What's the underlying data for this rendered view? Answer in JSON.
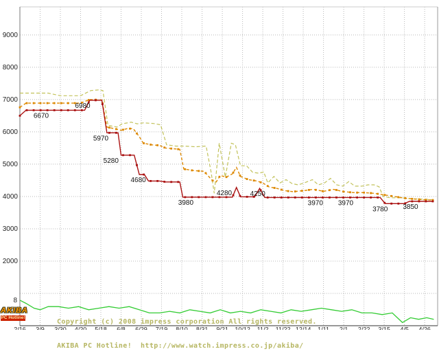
{
  "page": {
    "background": "#ffffff"
  },
  "watermark": {
    "line1": "Copyright (c) 2008 impress corporation All rights reserved.",
    "line2": "AKIBA PC Hotline!  http://www.watch.impress.co.jp/akiba/"
  },
  "logo": {
    "top": "AKIBA",
    "bottom": "PC Hotline!"
  },
  "chart_data": {
    "type": "line",
    "title": "",
    "xlabel": "",
    "ylabel": "",
    "grid": true,
    "x_tick_labels": [
      "2/16",
      "3/9",
      "3/30",
      "4/20",
      "5/18",
      "6/8",
      "6/29",
      "7/19",
      "8/10",
      "8/31",
      "9/21",
      "10/12",
      "11/2",
      "11/22",
      "12/14",
      "1/11",
      "2/1",
      "2/22",
      "3/15",
      "4/5",
      "4/26"
    ],
    "y_tick_labels": [
      9000,
      8000,
      7000,
      6000,
      5000,
      4000,
      3000,
      2000
    ],
    "y_gridlines": [
      1000,
      2000,
      3000,
      4000,
      5000,
      6000,
      7000,
      8000,
      9000
    ],
    "y_range": [
      0,
      9870
    ],
    "x_range": [
      0,
      20.64
    ],
    "count_range": [
      0,
      100
    ],
    "count_start_label": {
      "text": "8",
      "t": 0,
      "count": 8
    },
    "colors": {
      "lowest": "#aa1111",
      "average": "#dd8800",
      "highest": "#c2c25a",
      "shops": "#33cc33",
      "gridline": "#b8b8b8",
      "axis": "#555555",
      "annotation": "#111111"
    },
    "annotations": [
      {
        "text": "6670",
        "t": 1.05,
        "value": 6670
      },
      {
        "text": "6980",
        "t": 3.1,
        "value": 6980
      },
      {
        "text": "5970",
        "t": 4.0,
        "value": 5970
      },
      {
        "text": "5280",
        "t": 4.5,
        "value": 5280
      },
      {
        "text": "4680",
        "t": 5.85,
        "value": 4680
      },
      {
        "text": "3980",
        "t": 8.2,
        "value": 3980
      },
      {
        "text": "4280",
        "t": 10.1,
        "value": 4280
      },
      {
        "text": "4250",
        "t": 11.75,
        "value": 4250
      },
      {
        "text": "3970",
        "t": 14.6,
        "value": 3970
      },
      {
        "text": "3970",
        "t": 16.1,
        "value": 3970
      },
      {
        "text": "3780",
        "t": 17.8,
        "value": 3780
      },
      {
        "text": "3850",
        "t": 19.3,
        "value": 3850
      }
    ],
    "series": [
      {
        "name": "highest-price",
        "color": "#c2c25a",
        "dash": "5 3",
        "width": 1.2,
        "markers": false,
        "axis": "price",
        "points": [
          [
            0,
            7200
          ],
          [
            0.7,
            7200
          ],
          [
            1.4,
            7200
          ],
          [
            2,
            7120
          ],
          [
            3,
            7120
          ],
          [
            3.5,
            7280
          ],
          [
            3.9,
            7300
          ],
          [
            4.1,
            7280
          ],
          [
            4.35,
            6200
          ],
          [
            4.8,
            6150
          ],
          [
            5.05,
            6250
          ],
          [
            5.5,
            6300
          ],
          [
            5.8,
            6250
          ],
          [
            6.1,
            6280
          ],
          [
            6.6,
            6260
          ],
          [
            6.95,
            6220
          ],
          [
            7.25,
            5600
          ],
          [
            7.7,
            5560
          ],
          [
            8.1,
            5560
          ],
          [
            8.7,
            5540
          ],
          [
            9.2,
            5560
          ],
          [
            9.45,
            4750
          ],
          [
            9.6,
            4100
          ],
          [
            9.85,
            5650
          ],
          [
            10.15,
            4600
          ],
          [
            10.45,
            5650
          ],
          [
            10.65,
            5600
          ],
          [
            10.9,
            4950
          ],
          [
            11.2,
            4950
          ],
          [
            11.5,
            4750
          ],
          [
            11.8,
            4720
          ],
          [
            12.05,
            4760
          ],
          [
            12.25,
            4420
          ],
          [
            12.55,
            4620
          ],
          [
            12.85,
            4420
          ],
          [
            13.15,
            4520
          ],
          [
            13.45,
            4400
          ],
          [
            13.75,
            4360
          ],
          [
            14.05,
            4420
          ],
          [
            14.45,
            4520
          ],
          [
            14.75,
            4360
          ],
          [
            15.05,
            4420
          ],
          [
            15.35,
            4560
          ],
          [
            15.65,
            4360
          ],
          [
            15.95,
            4320
          ],
          [
            16.25,
            4460
          ],
          [
            16.55,
            4320
          ],
          [
            16.9,
            4320
          ],
          [
            17.2,
            4360
          ],
          [
            17.5,
            4360
          ],
          [
            17.75,
            4300
          ],
          [
            17.95,
            4000
          ],
          [
            18.3,
            3960
          ],
          [
            18.8,
            3960
          ],
          [
            19.3,
            3930
          ],
          [
            19.8,
            3920
          ],
          [
            20.45,
            3900
          ]
        ]
      },
      {
        "name": "average-price",
        "color": "#dd8800",
        "dash": "4 3",
        "width": 1.4,
        "markers": true,
        "axis": "price",
        "points": [
          [
            0,
            6760
          ],
          [
            0.3,
            6890
          ],
          [
            1,
            6890
          ],
          [
            2,
            6890
          ],
          [
            3,
            6890
          ],
          [
            3.45,
            7000
          ],
          [
            4.05,
            6990
          ],
          [
            4.3,
            6150
          ],
          [
            4.8,
            6080
          ],
          [
            5.0,
            6050
          ],
          [
            5.3,
            6100
          ],
          [
            5.6,
            6100
          ],
          [
            5.9,
            5850
          ],
          [
            6.1,
            5650
          ],
          [
            6.5,
            5600
          ],
          [
            6.9,
            5580
          ],
          [
            7.2,
            5500
          ],
          [
            7.9,
            5460
          ],
          [
            8.1,
            4850
          ],
          [
            8.6,
            4800
          ],
          [
            9.1,
            4780
          ],
          [
            9.5,
            4500
          ],
          [
            9.7,
            4450
          ],
          [
            9.9,
            4650
          ],
          [
            10.2,
            4600
          ],
          [
            10.5,
            4700
          ],
          [
            10.7,
            4900
          ],
          [
            10.9,
            4620
          ],
          [
            11.3,
            4520
          ],
          [
            11.7,
            4480
          ],
          [
            12.0,
            4420
          ],
          [
            12.3,
            4300
          ],
          [
            12.7,
            4250
          ],
          [
            13.1,
            4180
          ],
          [
            13.5,
            4150
          ],
          [
            14,
            4180
          ],
          [
            14.5,
            4220
          ],
          [
            15,
            4160
          ],
          [
            15.5,
            4220
          ],
          [
            16,
            4150
          ],
          [
            16.5,
            4120
          ],
          [
            17,
            4120
          ],
          [
            17.5,
            4100
          ],
          [
            18,
            4050
          ],
          [
            18.5,
            4000
          ],
          [
            19,
            3950
          ],
          [
            19.5,
            3920
          ],
          [
            20,
            3900
          ],
          [
            20.45,
            3890
          ]
        ]
      },
      {
        "name": "lowest-price",
        "color": "#aa1111",
        "dash": "",
        "width": 1.4,
        "markers": true,
        "axis": "price",
        "points": [
          [
            0,
            6500
          ],
          [
            0.3,
            6670
          ],
          [
            1,
            6670
          ],
          [
            2,
            6670
          ],
          [
            3,
            6670
          ],
          [
            3.2,
            6670
          ],
          [
            3.45,
            6980
          ],
          [
            4.05,
            6980
          ],
          [
            4.3,
            5970
          ],
          [
            4.85,
            5970
          ],
          [
            5.0,
            5280
          ],
          [
            5.65,
            5280
          ],
          [
            5.9,
            4680
          ],
          [
            6.15,
            4680
          ],
          [
            6.35,
            4480
          ],
          [
            6.9,
            4480
          ],
          [
            7.2,
            4450
          ],
          [
            7.9,
            4450
          ],
          [
            8.05,
            3980
          ],
          [
            9,
            3980
          ],
          [
            10,
            3980
          ],
          [
            10.5,
            3980
          ],
          [
            10.7,
            4280
          ],
          [
            10.9,
            3990
          ],
          [
            11.6,
            3990
          ],
          [
            11.85,
            4250
          ],
          [
            12.1,
            3970
          ],
          [
            13,
            3970
          ],
          [
            14,
            3970
          ],
          [
            15,
            3970
          ],
          [
            16,
            3970
          ],
          [
            17,
            3970
          ],
          [
            17.8,
            3970
          ],
          [
            18.05,
            3780
          ],
          [
            19.0,
            3780
          ],
          [
            19.25,
            3850
          ],
          [
            20,
            3850
          ],
          [
            20.45,
            3850
          ]
        ]
      },
      {
        "name": "shop-count",
        "color": "#33cc33",
        "dash": "",
        "width": 1.3,
        "markers": false,
        "axis": "count",
        "points": [
          [
            0,
            8
          ],
          [
            0.3,
            7
          ],
          [
            0.7,
            5.5
          ],
          [
            1,
            5
          ],
          [
            1.4,
            6
          ],
          [
            1.9,
            6
          ],
          [
            2.4,
            5.5
          ],
          [
            2.9,
            6
          ],
          [
            3.4,
            5
          ],
          [
            3.9,
            5.5
          ],
          [
            4.4,
            6
          ],
          [
            4.9,
            5.5
          ],
          [
            5.4,
            6
          ],
          [
            5.9,
            5
          ],
          [
            6.4,
            4
          ],
          [
            6.9,
            4
          ],
          [
            7.4,
            4.5
          ],
          [
            7.9,
            4
          ],
          [
            8.4,
            5
          ],
          [
            8.9,
            4.5
          ],
          [
            9.4,
            4
          ],
          [
            9.9,
            5
          ],
          [
            10.4,
            4
          ],
          [
            10.9,
            4.5
          ],
          [
            11.4,
            4
          ],
          [
            11.9,
            5
          ],
          [
            12.4,
            4.5
          ],
          [
            12.9,
            4
          ],
          [
            13.4,
            5
          ],
          [
            13.9,
            4.5
          ],
          [
            14.4,
            5
          ],
          [
            14.9,
            5.5
          ],
          [
            15.4,
            5
          ],
          [
            15.9,
            4.5
          ],
          [
            16.4,
            5
          ],
          [
            16.9,
            4
          ],
          [
            17.4,
            4
          ],
          [
            17.9,
            3.5
          ],
          [
            18.4,
            4
          ],
          [
            18.9,
            1
          ],
          [
            19.3,
            2.5
          ],
          [
            19.7,
            2
          ],
          [
            20.1,
            2.5
          ],
          [
            20.45,
            2
          ]
        ]
      }
    ]
  }
}
